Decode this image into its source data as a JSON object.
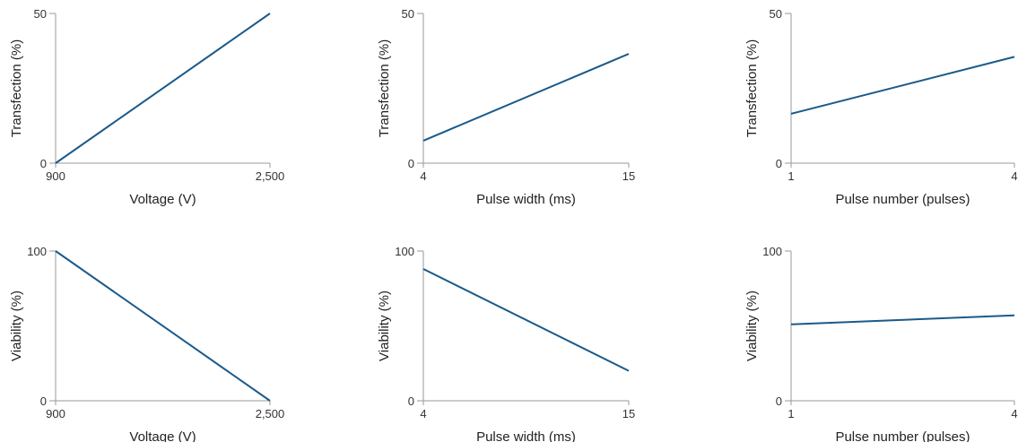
{
  "colors": {
    "line": "#1a5a8a",
    "axis": "#9a9a9a"
  },
  "chart_data": [
    {
      "type": "line",
      "xlabel": "Voltage (V)",
      "ylabel": "Transfection (%)",
      "xlim": [
        900,
        2500
      ],
      "ylim": [
        0,
        50
      ],
      "xticks": [
        900,
        2500
      ],
      "xtick_labels": [
        "900",
        "2,500"
      ],
      "yticks": [
        0,
        50
      ],
      "ytick_labels": [
        "0",
        "50"
      ],
      "x": [
        900,
        2500
      ],
      "y": [
        0,
        50
      ]
    },
    {
      "type": "line",
      "xlabel": "Pulse width (ms)",
      "ylabel": "Transfection (%)",
      "xlim": [
        4,
        15
      ],
      "ylim": [
        0,
        50
      ],
      "xticks": [
        4,
        15
      ],
      "xtick_labels": [
        "4",
        "15"
      ],
      "yticks": [
        0,
        50
      ],
      "ytick_labels": [
        "0",
        "50"
      ],
      "x": [
        4,
        15
      ],
      "y": [
        7.5,
        36.5
      ]
    },
    {
      "type": "line",
      "xlabel": "Pulse number (pulses)",
      "ylabel": "Transfection (%)",
      "xlim": [
        1,
        4
      ],
      "ylim": [
        0,
        50
      ],
      "xticks": [
        1,
        4
      ],
      "xtick_labels": [
        "1",
        "4"
      ],
      "yticks": [
        0,
        50
      ],
      "ytick_labels": [
        "0",
        "50"
      ],
      "x": [
        1,
        4
      ],
      "y": [
        16.5,
        35.5
      ]
    },
    {
      "type": "line",
      "xlabel": "Voltage (V)",
      "ylabel": "Viability (%)",
      "xlim": [
        900,
        2500
      ],
      "ylim": [
        0,
        100
      ],
      "xticks": [
        900,
        2500
      ],
      "xtick_labels": [
        "900",
        "2,500"
      ],
      "yticks": [
        0,
        100
      ],
      "ytick_labels": [
        "0",
        "100"
      ],
      "x": [
        900,
        2500
      ],
      "y": [
        100,
        0
      ]
    },
    {
      "type": "line",
      "xlabel": "Pulse width (ms)",
      "ylabel": "Viability (%)",
      "xlim": [
        4,
        15
      ],
      "ylim": [
        0,
        100
      ],
      "xticks": [
        4,
        15
      ],
      "xtick_labels": [
        "4",
        "15"
      ],
      "yticks": [
        0,
        100
      ],
      "ytick_labels": [
        "0",
        "100"
      ],
      "x": [
        4,
        15
      ],
      "y": [
        88,
        20
      ]
    },
    {
      "type": "line",
      "xlabel": "Pulse number (pulses)",
      "ylabel": "Viability (%)",
      "xlim": [
        1,
        4
      ],
      "ylim": [
        0,
        100
      ],
      "xticks": [
        1,
        4
      ],
      "xtick_labels": [
        "1",
        "4"
      ],
      "yticks": [
        0,
        100
      ],
      "ytick_labels": [
        "0",
        "100"
      ],
      "x": [
        1,
        4
      ],
      "y": [
        51,
        57
      ]
    }
  ]
}
